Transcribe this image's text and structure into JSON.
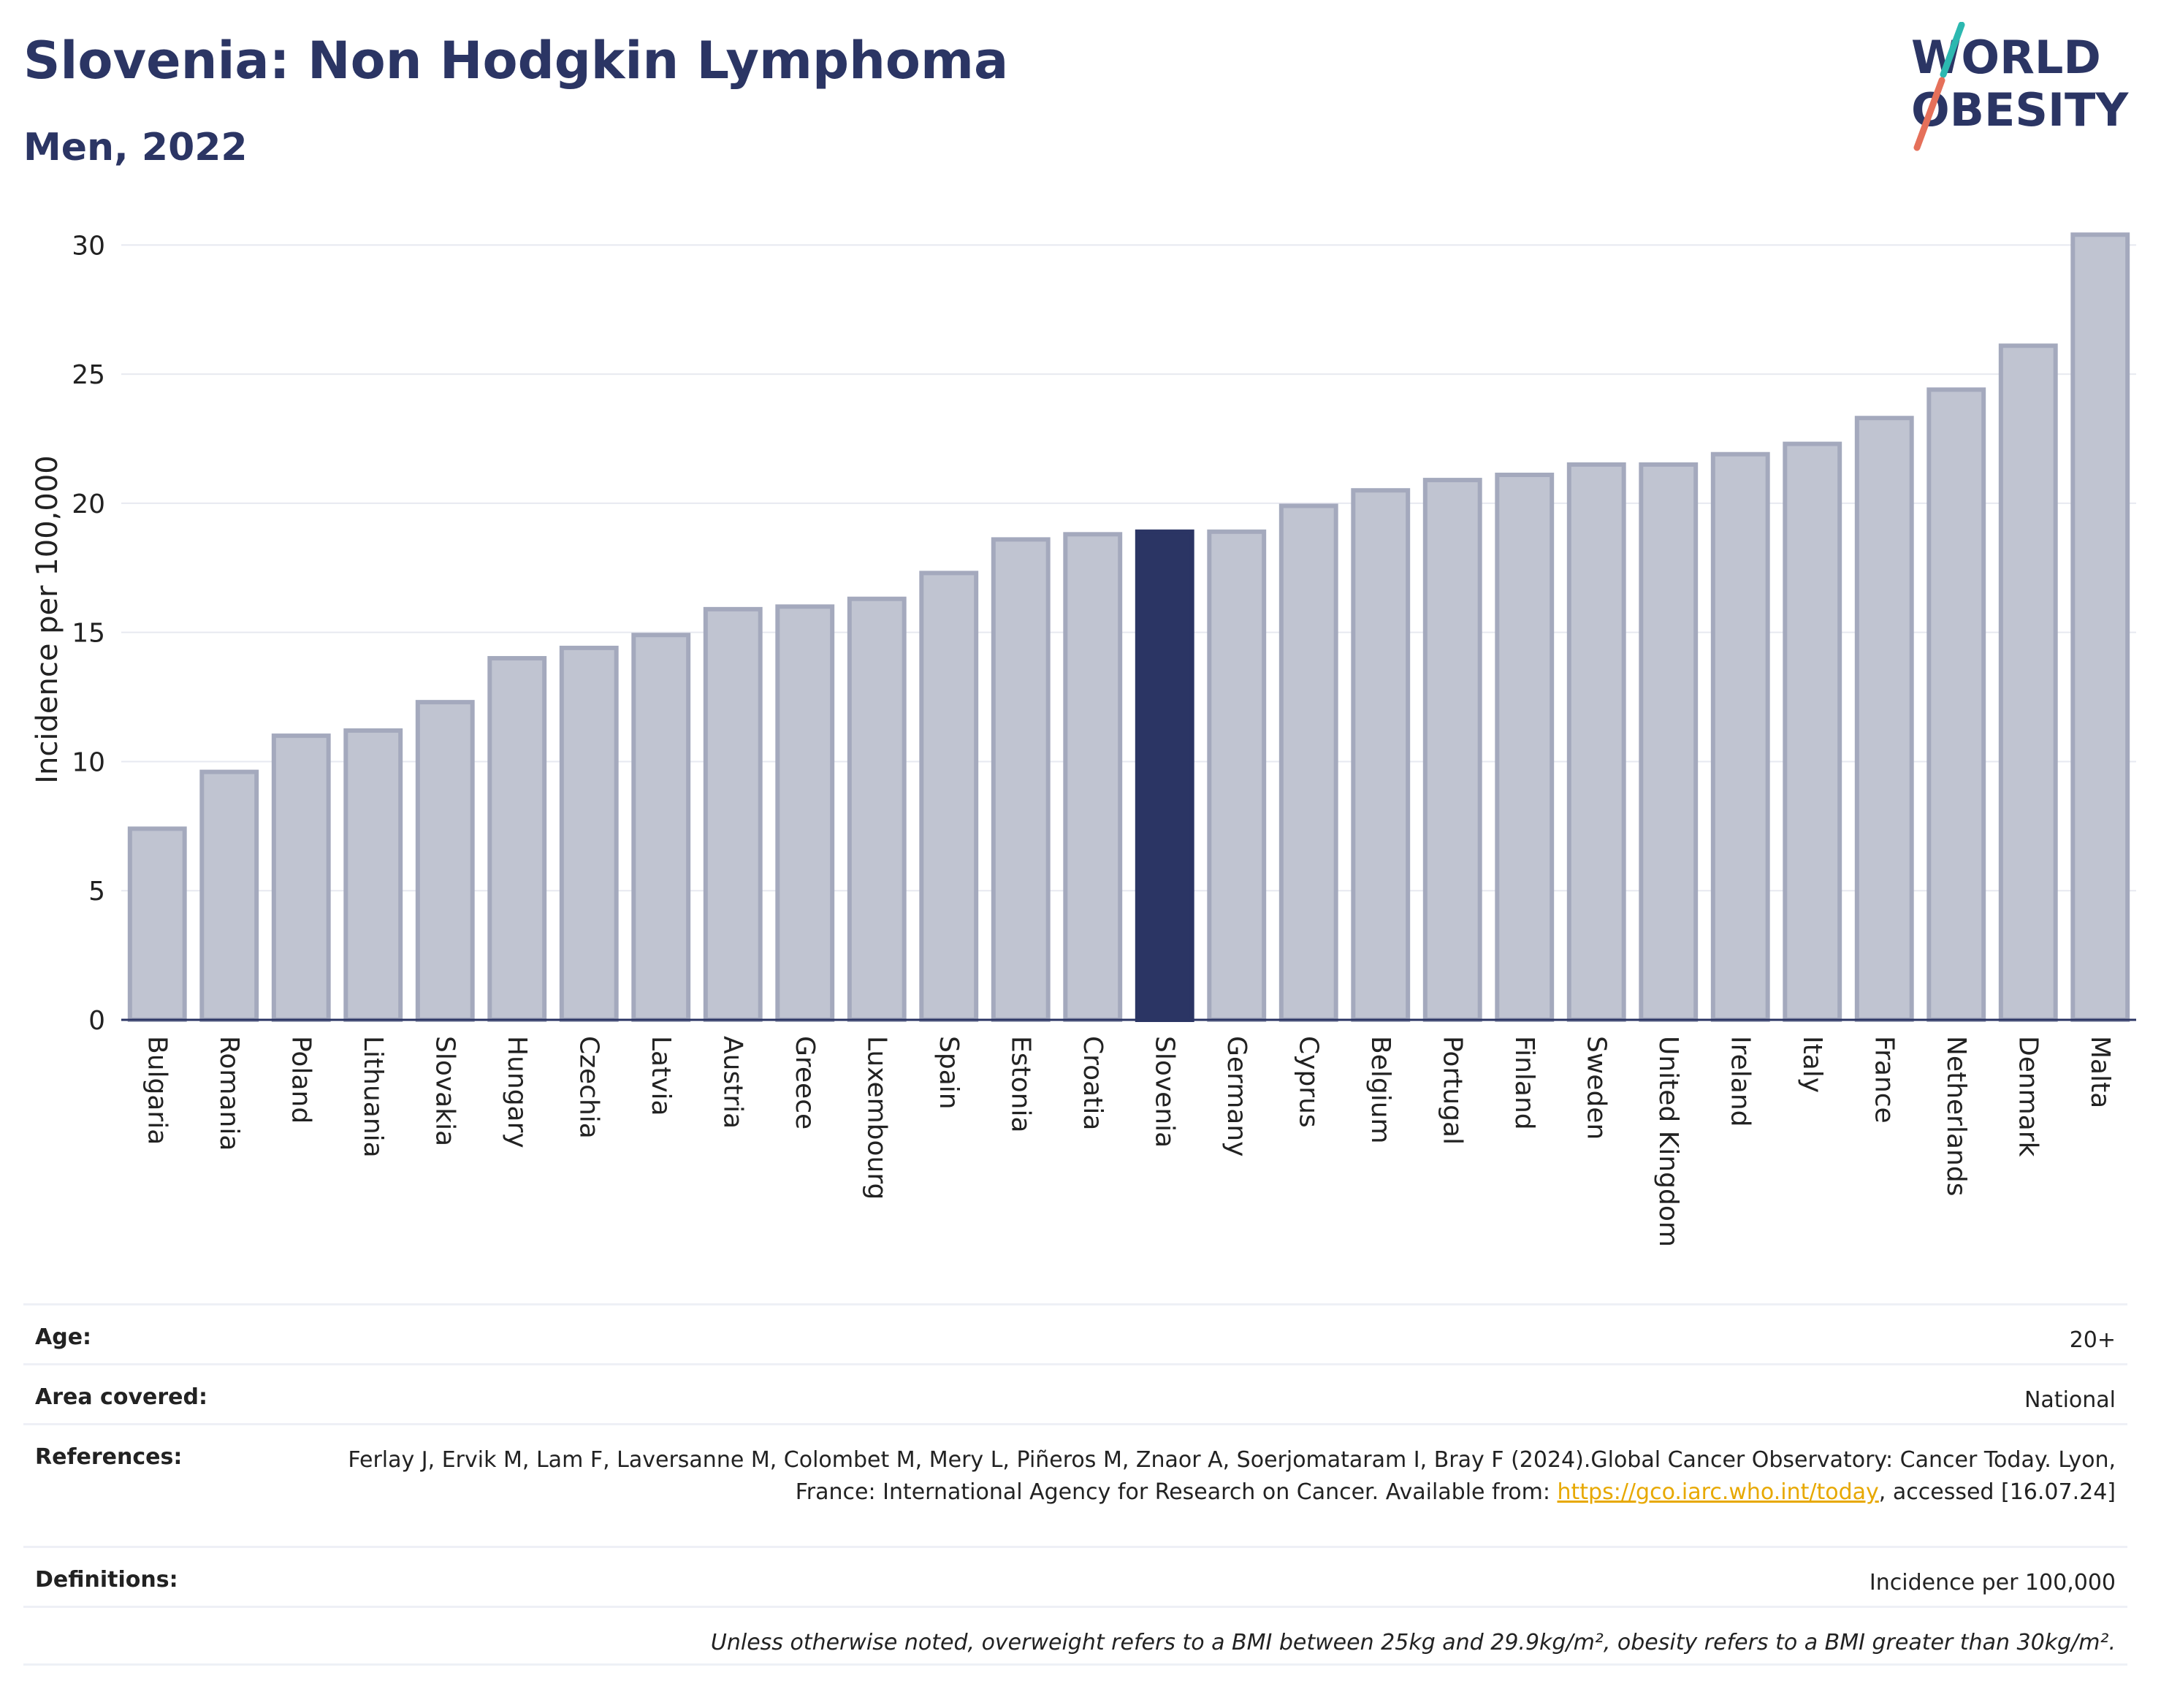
{
  "header": {
    "title": "Slovenia: Non Hodgkin Lymphoma",
    "subtitle": "Men, 2022"
  },
  "logo": {
    "line1": "WORLD",
    "line2": "OBESITY",
    "slash_top_color": "#2cb8b0",
    "slash_bottom_color": "#e5705a",
    "text_color": "#2b3564"
  },
  "chart_data": {
    "type": "bar",
    "title": "Slovenia: Non Hodgkin Lymphoma",
    "subtitle": "Men, 2022",
    "xlabel": "",
    "ylabel": "Incidence per 100,000",
    "ylim": [
      0,
      31
    ],
    "yticks": [
      0,
      5,
      10,
      15,
      20,
      25,
      30
    ],
    "grid": true,
    "highlight": "Slovenia",
    "colors": {
      "bar": "#c0c4d1",
      "bar_border": "#a4a9bd",
      "highlight": "#2b3564",
      "grid": "#e7e9f0",
      "axis": "#2b3564"
    },
    "categories": [
      "Bulgaria",
      "Romania",
      "Poland",
      "Lithuania",
      "Slovakia",
      "Hungary",
      "Czechia",
      "Latvia",
      "Austria",
      "Greece",
      "Luxembourg",
      "Spain",
      "Estonia",
      "Croatia",
      "Slovenia",
      "Germany",
      "Cyprus",
      "Belgium",
      "Portugal",
      "Finland",
      "Sweden",
      "United Kingdom",
      "Ireland",
      "Italy",
      "France",
      "Netherlands",
      "Denmark",
      "Malta"
    ],
    "values": [
      7.4,
      9.6,
      11.0,
      11.2,
      12.3,
      14.0,
      14.4,
      14.9,
      15.9,
      16.0,
      16.3,
      17.3,
      18.6,
      18.8,
      18.9,
      18.9,
      19.9,
      20.5,
      20.9,
      21.1,
      21.5,
      21.5,
      21.9,
      22.3,
      23.3,
      24.4,
      26.1,
      30.4
    ]
  },
  "info": {
    "age_label": "Age:",
    "age_value": "20+",
    "area_label": "Area covered:",
    "area_value": "National",
    "references_label": "References:",
    "references_text_1": "Ferlay J, Ervik M, Lam F, Laversanne M, Colombet M, Mery L, Piñeros M, Znaor A, Soerjomataram I, Bray F (2024).Global Cancer Observatory: Cancer Today. Lyon, France: International Agency for Research on Cancer. Available from: ",
    "references_link": "https://gco.iarc.who.int/today",
    "references_text_2": ", accessed [16.07.24]",
    "definitions_label": "Definitions:",
    "definitions_value": "Incidence per 100,000",
    "note": "Unless otherwise noted, overweight refers to a BMI between 25kg and 29.9kg/m², obesity refers to a BMI greater than 30kg/m²."
  }
}
